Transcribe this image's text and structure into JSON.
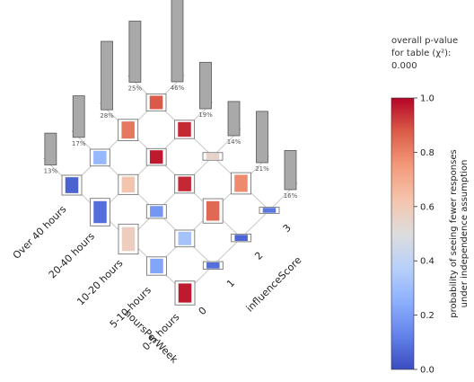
{
  "chart_data": {
    "type": "heatmap",
    "row_variable": "hoursPerWeek",
    "col_variable": "influenceScore",
    "row_categories": [
      "Over 40 hours",
      "20-40 hours",
      "10-20 hours",
      "5-10 hours",
      "0-5 hours"
    ],
    "col_categories": [
      "3",
      "2",
      "1",
      "0"
    ],
    "row_marginals": [
      "46%",
      "19%",
      "14%",
      "21%",
      "16%"
    ],
    "col_marginals": [
      "25%",
      "28%",
      "17%",
      "13%"
    ],
    "row_marginal_values": [
      46,
      19,
      14,
      21,
      16
    ],
    "col_marginal_values": [
      25,
      28,
      17,
      13
    ],
    "cells": [
      {
        "row": "Over 40 hours",
        "col": "3",
        "size": 0.55,
        "prob": 0.88
      },
      {
        "row": "Over 40 hours",
        "col": "2",
        "size": 0.7,
        "prob": 0.82
      },
      {
        "row": "Over 40 hours",
        "col": "1",
        "size": 0.55,
        "prob": 0.28
      },
      {
        "row": "Over 40 hours",
        "col": "0",
        "size": 0.65,
        "prob": 0.05
      },
      {
        "row": "20-40 hours",
        "col": "3",
        "size": 0.6,
        "prob": 0.95
      },
      {
        "row": "20-40 hours",
        "col": "2",
        "size": 0.55,
        "prob": 0.97
      },
      {
        "row": "20-40 hours",
        "col": "1",
        "size": 0.65,
        "prob": 0.62
      },
      {
        "row": "20-40 hours",
        "col": "0",
        "size": 0.9,
        "prob": 0.08
      },
      {
        "row": "10-20 hours",
        "col": "3",
        "size": 0.25,
        "prob": 0.55
      },
      {
        "row": "10-20 hours",
        "col": "2",
        "size": 0.6,
        "prob": 0.95
      },
      {
        "row": "10-20 hours",
        "col": "1",
        "size": 0.45,
        "prob": 0.18
      },
      {
        "row": "10-20 hours",
        "col": "0",
        "size": 0.98,
        "prob": 0.58
      },
      {
        "row": "5-10 hours",
        "col": "3",
        "size": 0.7,
        "prob": 0.78
      },
      {
        "row": "5-10 hours",
        "col": "2",
        "size": 0.8,
        "prob": 0.85
      },
      {
        "row": "5-10 hours",
        "col": "1",
        "size": 0.55,
        "prob": 0.32
      },
      {
        "row": "5-10 hours",
        "col": "0",
        "size": 0.6,
        "prob": 0.22
      },
      {
        "row": "0-5 hours",
        "col": "3",
        "size": 0.2,
        "prob": 0.1
      },
      {
        "row": "0-5 hours",
        "col": "2",
        "size": 0.25,
        "prob": 0.06
      },
      {
        "row": "0-5 hours",
        "col": "1",
        "size": 0.25,
        "prob": 0.08
      },
      {
        "row": "0-5 hours",
        "col": "0",
        "size": 0.78,
        "prob": 0.97
      }
    ],
    "colorbar": {
      "label_line1": "probability of seeing fewer responses",
      "label_line2": "under independence assumption",
      "range": [
        0,
        1
      ],
      "ticks": [
        "0.0",
        "0.2",
        "0.4",
        "0.6",
        "0.8",
        "1.0"
      ],
      "colormap": "coolwarm"
    },
    "pvalue_lines": [
      "overall p-value",
      "for table (χ²):",
      "0.000"
    ]
  },
  "colors": {
    "marginal_bar": "#a9a9a9",
    "low": "#3b4cc0",
    "mid": "#dddddd",
    "high": "#b40426"
  }
}
